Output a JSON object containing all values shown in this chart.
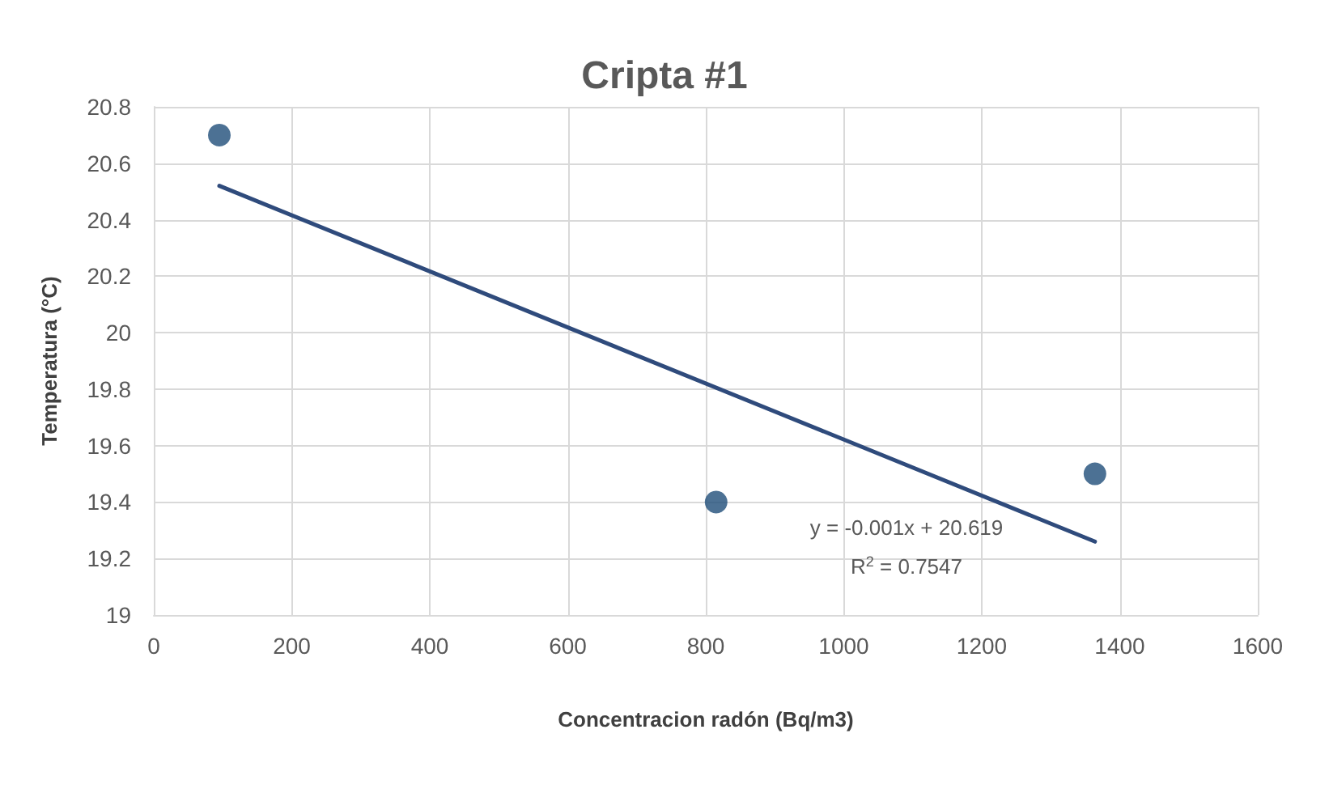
{
  "chart_data": {
    "type": "scatter",
    "title": "Cripta #1",
    "xlabel": "Concentracion radón (Bq/m3)",
    "ylabel": "Temperatura (°C)",
    "x": [
      95,
      815,
      1364
    ],
    "series": [
      {
        "color": "#1f4e79",
        "values": [
          20.7,
          19.4,
          19.5
        ],
        "marker": "circle"
      },
      {
        "type": "line",
        "color": "#2f4b7c",
        "x": [
          95,
          1364
        ],
        "values": [
          20.52,
          19.26
        ],
        "marker": "none",
        "line_style": "solid"
      }
    ],
    "annotations": [
      "y = -0.001x + 20.619",
      "R$^{2}$ = 0.7547"
    ],
    "xlim": [
      0,
      1600
    ],
    "xticks": [
      0,
      200,
      400,
      600,
      800,
      1000,
      1200,
      1400,
      1600
    ],
    "ylim": [
      19,
      20.8
    ],
    "yticks": [
      19,
      19.2,
      19.4,
      19.6,
      19.8,
      20,
      20.2,
      20.4,
      20.6,
      20.8
    ],
    "grid": true
  }
}
